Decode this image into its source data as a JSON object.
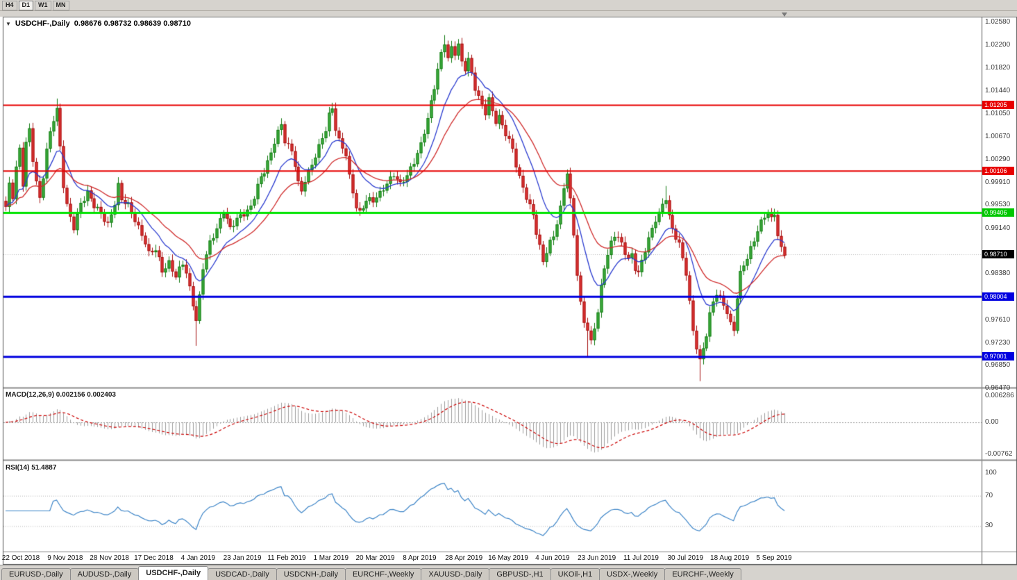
{
  "toolbar": {
    "timeframes": [
      {
        "label": "H4",
        "active": false
      },
      {
        "label": "D1",
        "active": true
      },
      {
        "label": "W1",
        "active": false
      },
      {
        "label": "MN",
        "active": false
      }
    ]
  },
  "chart": {
    "symbol": "USDCHF-,Daily",
    "ohlc_text": "0.98676 0.98732 0.98639 0.98710",
    "open": "0.98676",
    "high": "0.98732",
    "low": "0.98639",
    "close": "0.98710"
  },
  "price_axis": {
    "ticks": [
      "1.02580",
      "1.02200",
      "1.01820",
      "1.01440",
      "1.01050",
      "1.00670",
      "1.00290",
      "0.99910",
      "0.99530",
      "0.99140",
      "0.98380",
      "0.97610",
      "0.97230",
      "0.96850",
      "0.96470"
    ],
    "levels": [
      {
        "price": 1.01205,
        "label": "1.01205",
        "color": "#e80000",
        "line_width": 2
      },
      {
        "price": 1.00106,
        "label": "1.00106",
        "color": "#e80000",
        "line_width": 2
      },
      {
        "price": 0.99406,
        "label": "0.99406",
        "color": "#00c800",
        "line_color": "#00e400",
        "line_width": 3
      },
      {
        "price": 0.98004,
        "label": "0.98004",
        "color": "#0000e0",
        "line_width": 3
      },
      {
        "price": 0.97001,
        "label": "0.97001",
        "color": "#0000e0",
        "line_width": 3
      }
    ],
    "current_price": {
      "price": 0.9871,
      "label": "0.98710",
      "bg": "#000000"
    }
  },
  "chart_data": {
    "type": "candlestick",
    "symbol": "USDCHF",
    "timeframe": "Daily",
    "price_range": [
      0.965,
      1.0266
    ],
    "bar_count": 230,
    "first_open": 0.996,
    "up_color": "#3fae3f",
    "down_color": "#e03535",
    "close_waypoints": [
      [
        0,
        0.995
      ],
      [
        1,
        0.9985
      ],
      [
        2,
        0.9965
      ],
      [
        3,
        1.0015
      ],
      [
        4,
        1.0045
      ],
      [
        5,
        0.999
      ],
      [
        6,
        1.006
      ],
      [
        7,
        1.008
      ],
      [
        8,
        1.003
      ],
      [
        9,
        0.999
      ],
      [
        10,
        0.996
      ],
      [
        11,
        1.0
      ],
      [
        12,
        1.0045
      ],
      [
        13,
        1.0075
      ],
      [
        14,
        1.01
      ],
      [
        15,
        1.0115
      ],
      [
        16,
        1.005
      ],
      [
        17,
        0.9985
      ],
      [
        18,
        0.995
      ],
      [
        19,
        0.993
      ],
      [
        20,
        0.9915
      ],
      [
        22,
        0.9958
      ],
      [
        24,
        0.9975
      ],
      [
        26,
        0.995
      ],
      [
        28,
        0.9938
      ],
      [
        30,
        0.9922
      ],
      [
        32,
        0.9958
      ],
      [
        33,
        0.9985
      ],
      [
        34,
        0.996
      ],
      [
        36,
        0.9952
      ],
      [
        38,
        0.993
      ],
      [
        40,
        0.9905
      ],
      [
        41,
        0.989
      ],
      [
        42,
        0.987
      ],
      [
        44,
        0.9878
      ],
      [
        45,
        0.9862
      ],
      [
        46,
        0.9845
      ],
      [
        48,
        0.9858
      ],
      [
        50,
        0.9832
      ],
      [
        52,
        0.9855
      ],
      [
        53,
        0.984
      ],
      [
        54,
        0.9815
      ],
      [
        55,
        0.979
      ],
      [
        56,
        0.9762
      ],
      [
        57,
        0.98
      ],
      [
        58,
        0.9848
      ],
      [
        59,
        0.9868
      ],
      [
        60,
        0.9888
      ],
      [
        62,
        0.9915
      ],
      [
        64,
        0.9945
      ],
      [
        65,
        0.993
      ],
      [
        66,
        0.9912
      ],
      [
        68,
        0.9928
      ],
      [
        70,
        0.994
      ],
      [
        72,
        0.9952
      ],
      [
        74,
        0.9985
      ],
      [
        76,
        1.0008
      ],
      [
        78,
        1.004
      ],
      [
        79,
        1.0062
      ],
      [
        80,
        1.0078
      ],
      [
        81,
        1.0088
      ],
      [
        82,
        1.006
      ],
      [
        84,
        1.004
      ],
      [
        85,
        1.002
      ],
      [
        86,
        0.999
      ],
      [
        87,
        0.9978
      ],
      [
        88,
        0.9998
      ],
      [
        90,
        1.002
      ],
      [
        92,
        1.0048
      ],
      [
        94,
        1.008
      ],
      [
        95,
        1.0105
      ],
      [
        96,
        1.0118
      ],
      [
        97,
        1.0082
      ],
      [
        98,
        1.006
      ],
      [
        100,
        1.0035
      ],
      [
        101,
        0.9998
      ],
      [
        102,
        0.9975
      ],
      [
        103,
        0.9952
      ],
      [
        104,
        0.9942
      ],
      [
        106,
        0.9962
      ],
      [
        108,
        0.9958
      ],
      [
        110,
        0.9972
      ],
      [
        112,
        0.9992
      ],
      [
        114,
        1.0005
      ],
      [
        116,
        0.9985
      ],
      [
        118,
        1.0002
      ],
      [
        120,
        1.0028
      ],
      [
        122,
        1.0055
      ],
      [
        124,
        1.0095
      ],
      [
        126,
        1.015
      ],
      [
        127,
        1.018
      ],
      [
        128,
        1.0208
      ],
      [
        129,
        1.0228
      ],
      [
        130,
        1.0198
      ],
      [
        131,
        1.0215
      ],
      [
        132,
        1.0205
      ],
      [
        133,
        1.0218
      ],
      [
        134,
        1.019
      ],
      [
        135,
        1.0182
      ],
      [
        136,
        1.0198
      ],
      [
        137,
        1.0175
      ],
      [
        138,
        1.015
      ],
      [
        139,
        1.0132
      ],
      [
        140,
        1.0118
      ],
      [
        141,
        1.0105
      ],
      [
        142,
        1.0128
      ],
      [
        143,
        1.011
      ],
      [
        144,
        1.0095
      ],
      [
        145,
        1.0102
      ],
      [
        146,
        1.0088
      ],
      [
        147,
        1.0072
      ],
      [
        148,
        1.0058
      ],
      [
        149,
        1.0045
      ],
      [
        150,
        1.0018
      ],
      [
        151,
        0.9998
      ],
      [
        152,
        0.9985
      ],
      [
        153,
        0.9968
      ],
      [
        154,
        0.9952
      ],
      [
        155,
        0.9938
      ],
      [
        156,
        0.9905
      ],
      [
        157,
        0.988
      ],
      [
        158,
        0.9858
      ],
      [
        159,
        0.9875
      ],
      [
        160,
        0.9892
      ],
      [
        161,
        0.9905
      ],
      [
        162,
        0.9925
      ],
      [
        163,
        0.9948
      ],
      [
        164,
        0.9982
      ],
      [
        165,
        1.0005
      ],
      [
        166,
        0.9958
      ],
      [
        167,
        0.9905
      ],
      [
        168,
        0.9838
      ],
      [
        169,
        0.979
      ],
      [
        170,
        0.9762
      ],
      [
        171,
        0.9745
      ],
      [
        172,
        0.9722
      ],
      [
        173,
        0.9748
      ],
      [
        174,
        0.9772
      ],
      [
        175,
        0.9815
      ],
      [
        176,
        0.9852
      ],
      [
        177,
        0.9872
      ],
      [
        178,
        0.9892
      ],
      [
        179,
        0.9905
      ],
      [
        180,
        0.9898
      ],
      [
        181,
        0.9885
      ],
      [
        182,
        0.9872
      ],
      [
        183,
        0.9862
      ],
      [
        184,
        0.987
      ],
      [
        185,
        0.985
      ],
      [
        186,
        0.9842
      ],
      [
        187,
        0.986
      ],
      [
        188,
        0.9878
      ],
      [
        189,
        0.9895
      ],
      [
        190,
        0.991
      ],
      [
        191,
        0.9928
      ],
      [
        192,
        0.994
      ],
      [
        193,
        0.9955
      ],
      [
        194,
        0.9968
      ],
      [
        195,
        0.9935
      ],
      [
        196,
        0.9912
      ],
      [
        197,
        0.9898
      ],
      [
        198,
        0.9885
      ],
      [
        199,
        0.9862
      ],
      [
        200,
        0.984
      ],
      [
        201,
        0.9792
      ],
      [
        202,
        0.9745
      ],
      [
        203,
        0.9718
      ],
      [
        204,
        0.9692
      ],
      [
        205,
        0.9712
      ],
      [
        206,
        0.9735
      ],
      [
        207,
        0.9768
      ],
      [
        208,
        0.9792
      ],
      [
        209,
        0.9808
      ],
      [
        210,
        0.98
      ],
      [
        211,
        0.9788
      ],
      [
        212,
        0.9775
      ],
      [
        213,
        0.9752
      ],
      [
        214,
        0.9742
      ],
      [
        215,
        0.9798
      ],
      [
        216,
        0.9838
      ],
      [
        217,
        0.9855
      ],
      [
        218,
        0.9868
      ],
      [
        219,
        0.9882
      ],
      [
        220,
        0.9895
      ],
      [
        221,
        0.991
      ],
      [
        222,
        0.9922
      ],
      [
        223,
        0.9932
      ],
      [
        224,
        0.994
      ],
      [
        225,
        0.993
      ],
      [
        226,
        0.9942
      ],
      [
        227,
        0.9905
      ],
      [
        228,
        0.988
      ],
      [
        229,
        0.9871
      ]
    ],
    "spikes": {
      "15": {
        "high": 1.0131
      },
      "56": {
        "low": 0.9718
      },
      "81": {
        "high": 1.0098
      },
      "96": {
        "high": 1.0124
      },
      "129": {
        "high": 1.0237
      },
      "133": {
        "high": 1.023
      },
      "165": {
        "high": 1.0012
      },
      "171": {
        "low": 0.9699
      },
      "194": {
        "high": 0.9985
      },
      "204": {
        "low": 0.9659
      },
      "226": {
        "high": 0.9947
      }
    },
    "overlays": [
      {
        "name": "ma-fast",
        "color": "#2a3bd0",
        "period": 12
      },
      {
        "name": "ma-slow",
        "color": "#d02a2a",
        "period": 26
      }
    ],
    "horizontal_levels": [
      1.01205,
      1.00106,
      0.99406,
      0.98004,
      0.97001
    ],
    "date_labels": [
      "22 Oct 2018",
      "9 Nov 2018",
      "28 Nov 2018",
      "17 Dec 2018",
      "4 Jan 2019",
      "23 Jan 2019",
      "11 Feb 2019",
      "1 Mar 2019",
      "20 Mar 2019",
      "8 Apr 2019",
      "28 Apr 2019",
      "16 May 2019",
      "4 Jun 2019",
      "23 Jun 2019",
      "11 Jul 2019",
      "30 Jul 2019",
      "18 Aug 2019",
      "5 Sep 2019"
    ]
  },
  "macd_panel": {
    "label": "MACD(12,26,9) 0.002156 0.002403",
    "params": "12,26,9",
    "macd_value": "0.002156",
    "signal_value": "0.002403",
    "histogram_color": "#9e9e9e",
    "signal_color": "#cc0000",
    "scale": [
      {
        "value": 0.006286,
        "label": "0.006286"
      },
      {
        "value": 0,
        "label": "0.00"
      },
      {
        "value": -0.00762,
        "label": "-0.00762"
      }
    ]
  },
  "rsi_panel": {
    "label": "RSI(14) 51.4887",
    "value": "51.4887",
    "line_color": "#3d85c8",
    "levels": [
      70,
      30
    ],
    "scale": [
      {
        "value": 100,
        "label": "100"
      },
      {
        "value": 70,
        "label": "70"
      },
      {
        "value": 30,
        "label": "30"
      }
    ]
  },
  "tabs": [
    {
      "label": "EURUSD-,Daily",
      "active": false
    },
    {
      "label": "AUDUSD-,Daily",
      "active": false
    },
    {
      "label": "USDCHF-,Daily",
      "active": true
    },
    {
      "label": "USDCAD-,Daily",
      "active": false
    },
    {
      "label": "USDCNH-,Daily",
      "active": false
    },
    {
      "label": "EURCHF-,Weekly",
      "active": false
    },
    {
      "label": "XAUUSD-,Daily",
      "active": false
    },
    {
      "label": "GBPUSD-,H1",
      "active": false
    },
    {
      "label": "UKOil-,H1",
      "active": false
    },
    {
      "label": "USDX-,Weekly",
      "active": false
    },
    {
      "label": "EURCHF-,Weekly",
      "active": false
    }
  ]
}
